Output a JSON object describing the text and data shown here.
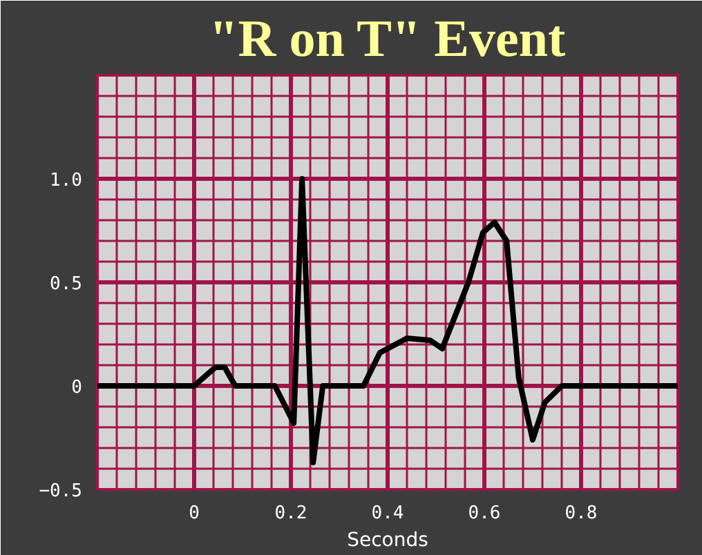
{
  "chart_data": {
    "type": "line",
    "title": "\"R on T\" Event",
    "xlabel": "Seconds",
    "x": [
      -0.2,
      0.0,
      0.044,
      0.063,
      0.085,
      0.167,
      0.206,
      0.223,
      0.246,
      0.266,
      0.35,
      0.384,
      0.44,
      0.488,
      0.513,
      0.567,
      0.597,
      0.621,
      0.646,
      0.671,
      0.7,
      0.725,
      0.76,
      1.0
    ],
    "series": [
      {
        "color": "#000000",
        "values": [
          0,
          0,
          0.09,
          0.09,
          0,
          0,
          -0.18,
          1.0,
          -0.37,
          0,
          0,
          0.16,
          0.23,
          0.22,
          0.18,
          0.5,
          0.74,
          0.79,
          0.7,
          0.04,
          -0.26,
          -0.08,
          0,
          0
        ]
      }
    ],
    "xlim": [
      -0.2,
      1.0
    ],
    "ylim": [
      -0.5,
      1.5
    ],
    "xticks": [
      0,
      0.2,
      0.4,
      0.6,
      0.8
    ],
    "yticks": [
      -0.5,
      0,
      0.5,
      {
        "value": 1.0,
        "label": "1.0"
      }
    ],
    "grid": true,
    "marker": "none",
    "line_style": "solid"
  }
}
